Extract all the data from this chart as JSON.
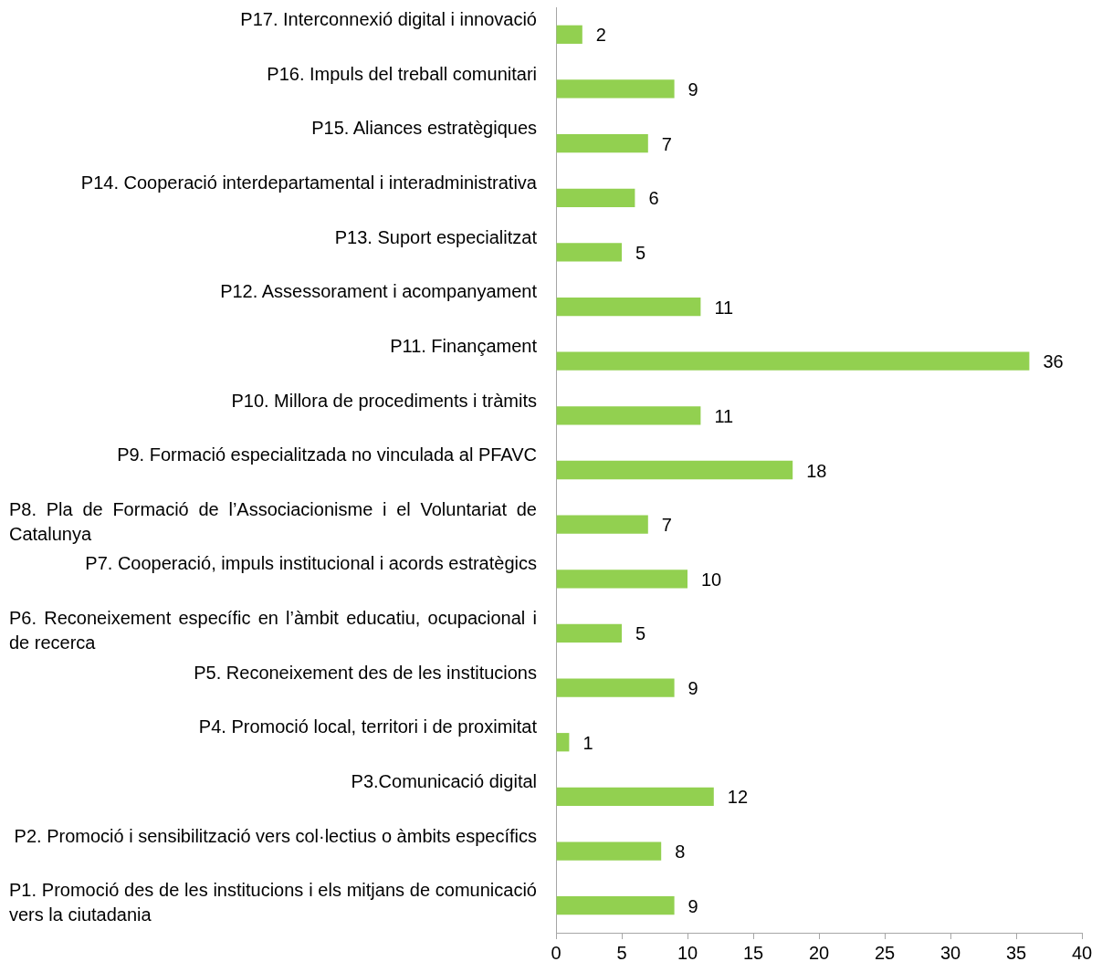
{
  "chart_data": {
    "type": "bar",
    "orientation": "horizontal",
    "categories": [
      "P17. Interconnexió digital i innovació",
      "P16. Impuls del treball comunitari",
      "P15. Aliances estratègiques",
      "P14. Cooperació interdepartamental i interadministrativa",
      "P13. Suport especialitzat",
      "P12. Assessorament i acompanyament",
      "P11. Finançament",
      "P10. Millora de procediments i tràmits",
      "P9. Formació especialitzada no vinculada al PFAVC",
      "P8. Pla de Formació de l’Associacionisme i el Voluntariat de Catalunya",
      "P7. Cooperació, impuls institucional i acords estratègics",
      "P6. Reconeixement específic en l’àmbit educatiu, ocupacional i de recerca",
      "P5. Reconeixement des de les institucions",
      "P4. Promoció local, territori i de proximitat",
      "P3.Comunicació digital",
      "P2. Promoció i sensibilització vers col·lectius o àmbits específics",
      "P1. Promoció des de les institucions i els mitjans de comunicació vers la ciutadania"
    ],
    "values": [
      2,
      9,
      7,
      6,
      5,
      11,
      36,
      11,
      18,
      7,
      10,
      5,
      9,
      1,
      12,
      8,
      9
    ],
    "color": "#92d050",
    "xlim": [
      0,
      40
    ],
    "xticks": [
      0,
      5,
      10,
      15,
      20,
      25,
      30,
      35,
      40
    ],
    "data_labels": true,
    "grid": false,
    "legend": false
  }
}
